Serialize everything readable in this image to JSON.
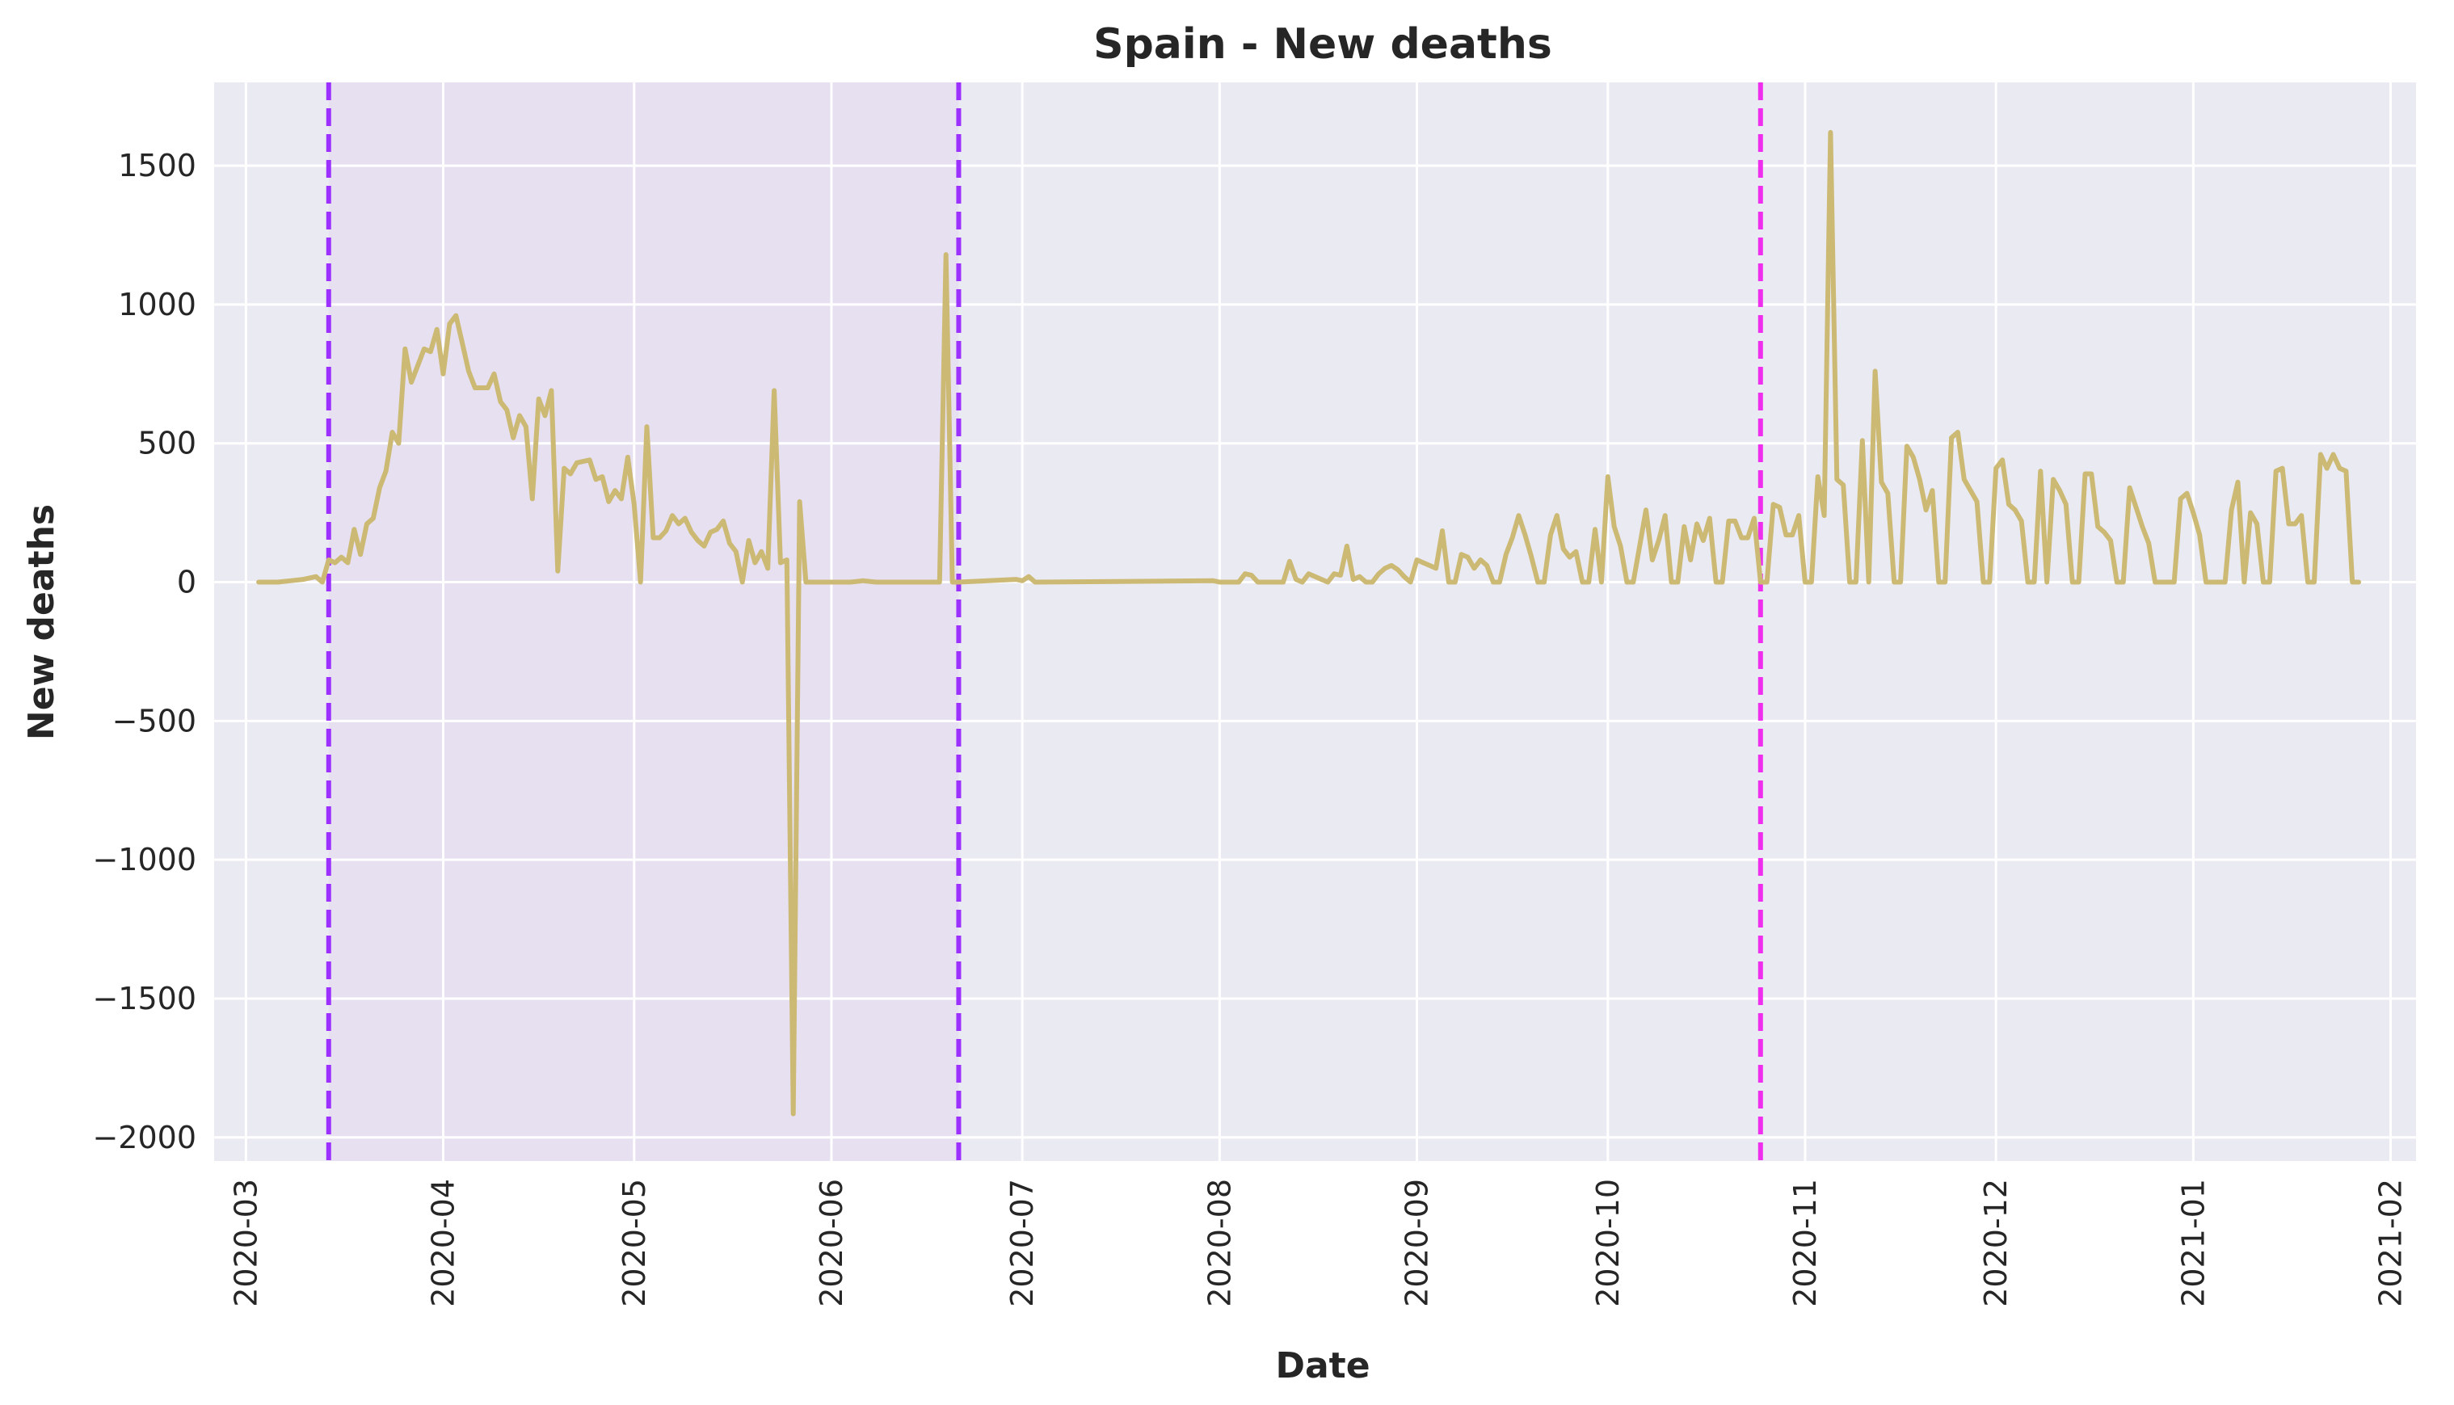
{
  "chart_data": {
    "type": "line",
    "title": "Spain - New deaths",
    "xlabel": "Date",
    "ylabel": "New deaths",
    "x_axis_type": "date",
    "xlim": [
      "2020-02-25",
      "2021-02-05"
    ],
    "ylim": [
      -2085,
      1800
    ],
    "xticks": [
      "2020-03",
      "2020-04",
      "2020-05",
      "2020-06",
      "2020-07",
      "2020-08",
      "2020-09",
      "2020-10",
      "2020-11",
      "2020-12",
      "2021-01",
      "2021-02"
    ],
    "xtick_dates": [
      "2020-03-01",
      "2020-04-01",
      "2020-05-01",
      "2020-06-01",
      "2020-07-01",
      "2020-08-01",
      "2020-09-01",
      "2020-10-01",
      "2020-11-01",
      "2020-12-01",
      "2021-01-01",
      "2021-02-01"
    ],
    "yticks": [
      1500,
      1000,
      500,
      0,
      -500,
      -1000,
      -1500,
      -2000
    ],
    "ytick_labels": [
      "1500",
      "1000",
      "500",
      "0",
      "−500",
      "−1000",
      "−1500",
      "−2000"
    ],
    "grid": true,
    "colors": {
      "background": "#eaeaf2",
      "line": "#ccb974",
      "shaded_region": "#e6e0f0",
      "vline_1": "#9b30ff",
      "vline_2": "#9b30ff",
      "vline_3": "#ee30ee"
    },
    "vlines": [
      {
        "date": "2020-03-14",
        "color": "#9b30ff",
        "style": "dashed"
      },
      {
        "date": "2020-06-21",
        "color": "#9b30ff",
        "style": "dashed"
      },
      {
        "date": "2020-10-25",
        "color": "#ee30ee",
        "style": "dashed"
      }
    ],
    "shaded_span": {
      "start": "2020-03-14",
      "end": "2020-06-21"
    },
    "series": [
      {
        "points": [
          [
            "2020-03-03",
            0
          ],
          [
            "2020-03-06",
            0
          ],
          [
            "2020-03-08",
            5
          ],
          [
            "2020-03-10",
            10
          ],
          [
            "2020-03-11",
            15
          ],
          [
            "2020-03-12",
            20
          ],
          [
            "2020-03-13",
            0
          ],
          [
            "2020-03-14",
            80
          ],
          [
            "2020-03-15",
            70
          ],
          [
            "2020-03-16",
            90
          ],
          [
            "2020-03-17",
            70
          ],
          [
            "2020-03-18",
            190
          ],
          [
            "2020-03-19",
            100
          ],
          [
            "2020-03-20",
            210
          ],
          [
            "2020-03-21",
            230
          ],
          [
            "2020-03-22",
            340
          ],
          [
            "2020-03-23",
            400
          ],
          [
            "2020-03-24",
            540
          ],
          [
            "2020-03-25",
            500
          ],
          [
            "2020-03-26",
            840
          ],
          [
            "2020-03-27",
            720
          ],
          [
            "2020-03-28",
            780
          ],
          [
            "2020-03-29",
            840
          ],
          [
            "2020-03-30",
            830
          ],
          [
            "2020-03-31",
            910
          ],
          [
            "2020-04-01",
            750
          ],
          [
            "2020-04-02",
            930
          ],
          [
            "2020-04-03",
            960
          ],
          [
            "2020-04-04",
            860
          ],
          [
            "2020-04-05",
            760
          ],
          [
            "2020-04-06",
            700
          ],
          [
            "2020-04-08",
            700
          ],
          [
            "2020-04-09",
            750
          ],
          [
            "2020-04-10",
            650
          ],
          [
            "2020-04-11",
            620
          ],
          [
            "2020-04-12",
            520
          ],
          [
            "2020-04-13",
            600
          ],
          [
            "2020-04-14",
            560
          ],
          [
            "2020-04-15",
            300
          ],
          [
            "2020-04-16",
            660
          ],
          [
            "2020-04-17",
            600
          ],
          [
            "2020-04-18",
            690
          ],
          [
            "2020-04-19",
            40
          ],
          [
            "2020-04-20",
            410
          ],
          [
            "2020-04-21",
            390
          ],
          [
            "2020-04-22",
            430
          ],
          [
            "2020-04-24",
            440
          ],
          [
            "2020-04-25",
            370
          ],
          [
            "2020-04-26",
            380
          ],
          [
            "2020-04-27",
            290
          ],
          [
            "2020-04-28",
            330
          ],
          [
            "2020-04-29",
            300
          ],
          [
            "2020-04-30",
            450
          ],
          [
            "2020-05-01",
            280
          ],
          [
            "2020-05-02",
            0
          ],
          [
            "2020-05-03",
            560
          ],
          [
            "2020-05-04",
            160
          ],
          [
            "2020-05-05",
            160
          ],
          [
            "2020-05-06",
            185
          ],
          [
            "2020-05-07",
            240
          ],
          [
            "2020-05-08",
            210
          ],
          [
            "2020-05-09",
            230
          ],
          [
            "2020-05-10",
            180
          ],
          [
            "2020-05-11",
            150
          ],
          [
            "2020-05-12",
            130
          ],
          [
            "2020-05-13",
            180
          ],
          [
            "2020-05-14",
            190
          ],
          [
            "2020-05-15",
            220
          ],
          [
            "2020-05-16",
            140
          ],
          [
            "2020-05-17",
            110
          ],
          [
            "2020-05-18",
            0
          ],
          [
            "2020-05-19",
            150
          ],
          [
            "2020-05-20",
            70
          ],
          [
            "2020-05-21",
            110
          ],
          [
            "2020-05-22",
            50
          ],
          [
            "2020-05-23",
            690
          ],
          [
            "2020-05-24",
            70
          ],
          [
            "2020-05-25",
            80
          ],
          [
            "2020-05-26",
            -1915
          ],
          [
            "2020-05-27",
            290
          ],
          [
            "2020-05-28",
            0
          ],
          [
            "2020-06-04",
            0
          ],
          [
            "2020-06-06",
            5
          ],
          [
            "2020-06-08",
            0
          ],
          [
            "2020-06-18",
            0
          ],
          [
            "2020-06-19",
            1180
          ],
          [
            "2020-06-20",
            0
          ],
          [
            "2020-06-21",
            0
          ],
          [
            "2020-06-30",
            10
          ],
          [
            "2020-07-01",
            5
          ],
          [
            "2020-07-02",
            20
          ],
          [
            "2020-07-03",
            0
          ],
          [
            "2020-07-31",
            5
          ],
          [
            "2020-08-01",
            0
          ],
          [
            "2020-08-04",
            0
          ],
          [
            "2020-08-05",
            30
          ],
          [
            "2020-08-06",
            25
          ],
          [
            "2020-08-07",
            0
          ],
          [
            "2020-08-11",
            0
          ],
          [
            "2020-08-12",
            75
          ],
          [
            "2020-08-13",
            10
          ],
          [
            "2020-08-14",
            0
          ],
          [
            "2020-08-15",
            30
          ],
          [
            "2020-08-17",
            10
          ],
          [
            "2020-08-18",
            0
          ],
          [
            "2020-08-19",
            30
          ],
          [
            "2020-08-20",
            25
          ],
          [
            "2020-08-21",
            130
          ],
          [
            "2020-08-22",
            10
          ],
          [
            "2020-08-23",
            20
          ],
          [
            "2020-08-24",
            0
          ],
          [
            "2020-08-25",
            0
          ],
          [
            "2020-08-26",
            30
          ],
          [
            "2020-08-27",
            50
          ],
          [
            "2020-08-28",
            60
          ],
          [
            "2020-08-29",
            45
          ],
          [
            "2020-08-30",
            20
          ],
          [
            "2020-08-31",
            0
          ],
          [
            "2020-09-01",
            80
          ],
          [
            "2020-09-02",
            70
          ],
          [
            "2020-09-03",
            60
          ],
          [
            "2020-09-04",
            50
          ],
          [
            "2020-09-05",
            185
          ],
          [
            "2020-09-06",
            0
          ],
          [
            "2020-09-07",
            0
          ],
          [
            "2020-09-08",
            100
          ],
          [
            "2020-09-09",
            90
          ],
          [
            "2020-09-10",
            50
          ],
          [
            "2020-09-11",
            80
          ],
          [
            "2020-09-12",
            60
          ],
          [
            "2020-09-13",
            0
          ],
          [
            "2020-09-14",
            0
          ],
          [
            "2020-09-15",
            100
          ],
          [
            "2020-09-16",
            160
          ],
          [
            "2020-09-17",
            240
          ],
          [
            "2020-09-18",
            170
          ],
          [
            "2020-09-19",
            90
          ],
          [
            "2020-09-20",
            0
          ],
          [
            "2020-09-21",
            0
          ],
          [
            "2020-09-22",
            170
          ],
          [
            "2020-09-23",
            240
          ],
          [
            "2020-09-24",
            120
          ],
          [
            "2020-09-25",
            90
          ],
          [
            "2020-09-26",
            110
          ],
          [
            "2020-09-27",
            0
          ],
          [
            "2020-09-28",
            0
          ],
          [
            "2020-09-29",
            190
          ],
          [
            "2020-09-30",
            0
          ],
          [
            "2020-10-01",
            380
          ],
          [
            "2020-10-02",
            200
          ],
          [
            "2020-10-03",
            130
          ],
          [
            "2020-10-04",
            0
          ],
          [
            "2020-10-05",
            0
          ],
          [
            "2020-10-06",
            130
          ],
          [
            "2020-10-07",
            260
          ],
          [
            "2020-10-08",
            80
          ],
          [
            "2020-10-09",
            150
          ],
          [
            "2020-10-10",
            240
          ],
          [
            "2020-10-11",
            0
          ],
          [
            "2020-10-12",
            0
          ],
          [
            "2020-10-13",
            200
          ],
          [
            "2020-10-14",
            80
          ],
          [
            "2020-10-15",
            210
          ],
          [
            "2020-10-16",
            150
          ],
          [
            "2020-10-17",
            230
          ],
          [
            "2020-10-18",
            0
          ],
          [
            "2020-10-19",
            0
          ],
          [
            "2020-10-20",
            220
          ],
          [
            "2020-10-21",
            220
          ],
          [
            "2020-10-22",
            160
          ],
          [
            "2020-10-23",
            160
          ],
          [
            "2020-10-24",
            230
          ],
          [
            "2020-10-25",
            0
          ],
          [
            "2020-10-26",
            0
          ],
          [
            "2020-10-27",
            280
          ],
          [
            "2020-10-28",
            270
          ],
          [
            "2020-10-29",
            170
          ],
          [
            "2020-10-30",
            170
          ],
          [
            "2020-10-31",
            240
          ],
          [
            "2020-11-01",
            0
          ],
          [
            "2020-11-02",
            0
          ],
          [
            "2020-11-03",
            380
          ],
          [
            "2020-11-04",
            240
          ],
          [
            "2020-11-05",
            1620
          ],
          [
            "2020-11-06",
            370
          ],
          [
            "2020-11-07",
            350
          ],
          [
            "2020-11-08",
            0
          ],
          [
            "2020-11-09",
            0
          ],
          [
            "2020-11-10",
            510
          ],
          [
            "2020-11-11",
            0
          ],
          [
            "2020-11-12",
            760
          ],
          [
            "2020-11-13",
            360
          ],
          [
            "2020-11-14",
            320
          ],
          [
            "2020-11-15",
            0
          ],
          [
            "2020-11-16",
            0
          ],
          [
            "2020-11-17",
            490
          ],
          [
            "2020-11-18",
            450
          ],
          [
            "2020-11-19",
            370
          ],
          [
            "2020-11-20",
            260
          ],
          [
            "2020-11-21",
            330
          ],
          [
            "2020-11-22",
            0
          ],
          [
            "2020-11-23",
            0
          ],
          [
            "2020-11-24",
            520
          ],
          [
            "2020-11-25",
            540
          ],
          [
            "2020-11-26",
            370
          ],
          [
            "2020-11-27",
            330
          ],
          [
            "2020-11-28",
            290
          ],
          [
            "2020-11-29",
            0
          ],
          [
            "2020-11-30",
            0
          ],
          [
            "2020-12-01",
            410
          ],
          [
            "2020-12-02",
            440
          ],
          [
            "2020-12-03",
            280
          ],
          [
            "2020-12-04",
            260
          ],
          [
            "2020-12-05",
            220
          ],
          [
            "2020-12-06",
            0
          ],
          [
            "2020-12-07",
            0
          ],
          [
            "2020-12-08",
            400
          ],
          [
            "2020-12-09",
            0
          ],
          [
            "2020-12-10",
            370
          ],
          [
            "2020-12-11",
            330
          ],
          [
            "2020-12-12",
            280
          ],
          [
            "2020-12-13",
            0
          ],
          [
            "2020-12-14",
            0
          ],
          [
            "2020-12-15",
            390
          ],
          [
            "2020-12-16",
            390
          ],
          [
            "2020-12-17",
            200
          ],
          [
            "2020-12-18",
            180
          ],
          [
            "2020-12-19",
            150
          ],
          [
            "2020-12-20",
            0
          ],
          [
            "2020-12-21",
            0
          ],
          [
            "2020-12-22",
            340
          ],
          [
            "2020-12-23",
            270
          ],
          [
            "2020-12-24",
            200
          ],
          [
            "2020-12-25",
            140
          ],
          [
            "2020-12-26",
            0
          ],
          [
            "2020-12-29",
            0
          ],
          [
            "2020-12-30",
            300
          ],
          [
            "2020-12-31",
            320
          ],
          [
            "2021-01-01",
            250
          ],
          [
            "2021-01-02",
            170
          ],
          [
            "2021-01-03",
            0
          ],
          [
            "2021-01-06",
            0
          ],
          [
            "2021-01-07",
            260
          ],
          [
            "2021-01-08",
            360
          ],
          [
            "2021-01-09",
            0
          ],
          [
            "2021-01-10",
            250
          ],
          [
            "2021-01-11",
            210
          ],
          [
            "2021-01-12",
            0
          ],
          [
            "2021-01-13",
            0
          ],
          [
            "2021-01-14",
            400
          ],
          [
            "2021-01-15",
            410
          ],
          [
            "2021-01-16",
            210
          ],
          [
            "2021-01-17",
            210
          ],
          [
            "2021-01-18",
            240
          ],
          [
            "2021-01-19",
            0
          ],
          [
            "2021-01-20",
            0
          ],
          [
            "2021-01-21",
            460
          ],
          [
            "2021-01-22",
            410
          ],
          [
            "2021-01-23",
            460
          ],
          [
            "2021-01-24",
            410
          ],
          [
            "2021-01-25",
            400
          ],
          [
            "2021-01-26",
            0
          ],
          [
            "2021-01-27",
            0
          ]
        ]
      }
    ]
  }
}
